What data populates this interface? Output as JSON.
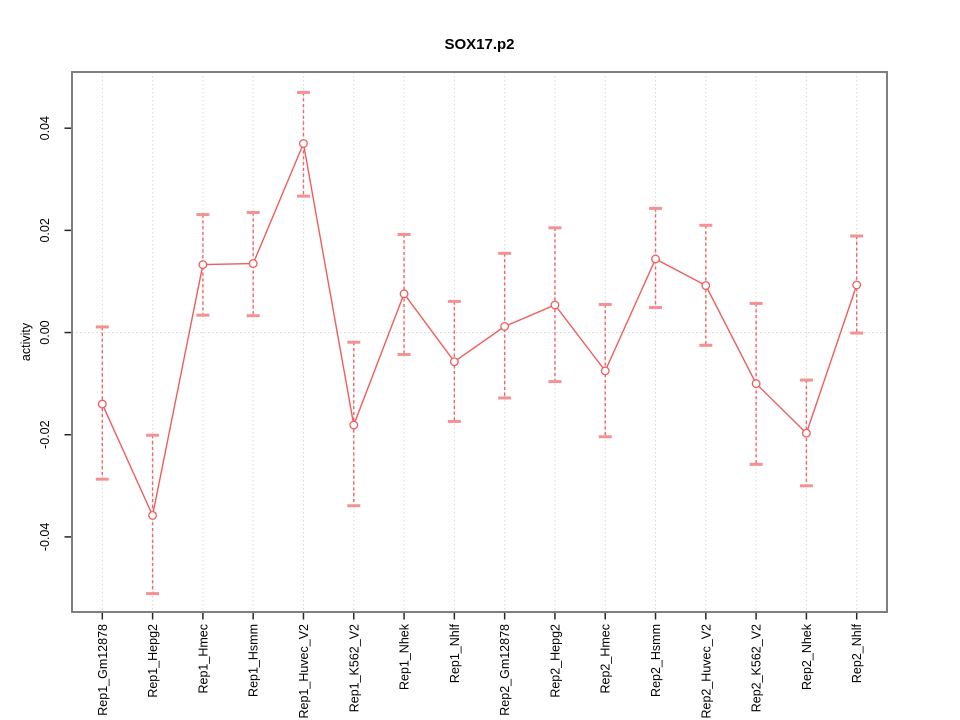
{
  "figure": {
    "background": "#ffffff"
  },
  "chart_data": {
    "type": "line",
    "title": "SOX17.p2",
    "xlabel": "",
    "ylabel": "activity",
    "categories": [
      "Rep1_Gm12878",
      "Rep1_Hepg2",
      "Rep1_Hmec",
      "Rep1_Hsmm",
      "Rep1_Huvec_V2",
      "Rep1_K562_V2",
      "Rep1_Nhek",
      "Rep1_Nhlf",
      "Rep2_Gm12878",
      "Rep2_Hepg2",
      "Rep2_Hmec",
      "Rep2_Hsmm",
      "Rep2_Huvec_V2",
      "Rep2_K562_V2",
      "Rep2_Nhek",
      "Rep2_Nhlf"
    ],
    "series": [
      {
        "name": "activity",
        "values": [
          -0.014,
          -0.0358,
          0.0133,
          0.0135,
          0.037,
          -0.0181,
          0.0076,
          -0.0057,
          0.0012,
          0.0054,
          -0.0075,
          0.0144,
          0.0092,
          -0.01,
          -0.0197,
          0.0093
        ],
        "err_high": [
          0.0011,
          -0.0201,
          0.0231,
          0.0235,
          0.047,
          -0.0019,
          0.0192,
          0.0061,
          0.0155,
          0.0205,
          0.0055,
          0.0243,
          0.021,
          0.0057,
          -0.0093,
          0.0189
        ],
        "err_low": [
          -0.0287,
          -0.0511,
          0.0034,
          0.0033,
          0.0267,
          -0.0339,
          -0.0043,
          -0.0174,
          -0.0128,
          -0.0096,
          -0.0204,
          0.0049,
          -0.0025,
          -0.0258,
          -0.03,
          -0.0001
        ]
      }
    ],
    "ylim": [
      -0.0547,
      0.051
    ],
    "yticks": [
      -0.04,
      -0.02,
      0,
      0.02,
      0.04
    ],
    "ytick_labels": [
      "-0.04",
      "-0.02",
      "0.00",
      "0.02",
      "0.04"
    ],
    "grid": "dotted vertical line at every category; dotted horizontal line at y=0; legend off",
    "reference_line_y": 0,
    "colors": {
      "line": "#ef5d5d",
      "error_line": "#f06565",
      "error_cap": "#f59191",
      "point_stroke": "#ef5d5d",
      "point_fill": "#ffffff",
      "grid": "#d8d8d8",
      "box": "#7f7f7f",
      "tick": "#262626",
      "text": "#000000"
    }
  }
}
